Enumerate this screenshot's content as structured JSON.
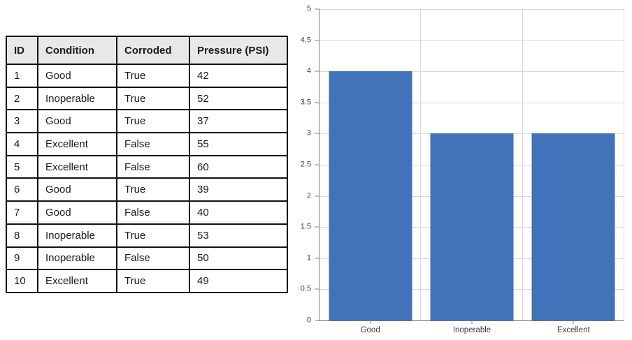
{
  "table": {
    "headers": [
      "ID",
      "Condition",
      "Corroded",
      "Pressure (PSI)"
    ],
    "rows": [
      [
        "1",
        "Good",
        "True",
        "42"
      ],
      [
        "2",
        "Inoperable",
        "True",
        "52"
      ],
      [
        "3",
        "Good",
        "True",
        "37"
      ],
      [
        "4",
        "Excellent",
        "False",
        "55"
      ],
      [
        "5",
        "Excellent",
        "False",
        "60"
      ],
      [
        "6",
        "Good",
        "True",
        "39"
      ],
      [
        "7",
        "Good",
        "False",
        "40"
      ],
      [
        "8",
        "Inoperable",
        "True",
        "53"
      ],
      [
        "9",
        "Inoperable",
        "False",
        "50"
      ],
      [
        "10",
        "Excellent",
        "True",
        "49"
      ]
    ]
  },
  "chart_data": {
    "type": "bar",
    "categories": [
      "Good",
      "Inoperable",
      "Excellent"
    ],
    "values": [
      4,
      3,
      3
    ],
    "title": "",
    "xlabel": "",
    "ylabel": "",
    "ylim": [
      0,
      5
    ],
    "ytick_step": 0.5,
    "ytick_labels_top_to_bottom": [
      "5",
      "4.5",
      "4",
      "3.5",
      "3",
      "2.5",
      "2",
      "1.5",
      "1",
      "0.5",
      "0"
    ],
    "grid": true,
    "legend": false,
    "bar_color": "#4273B9",
    "gridline_color": "#D9D9D9",
    "axis_color": "#808080",
    "tick_label_color": "#404040"
  }
}
